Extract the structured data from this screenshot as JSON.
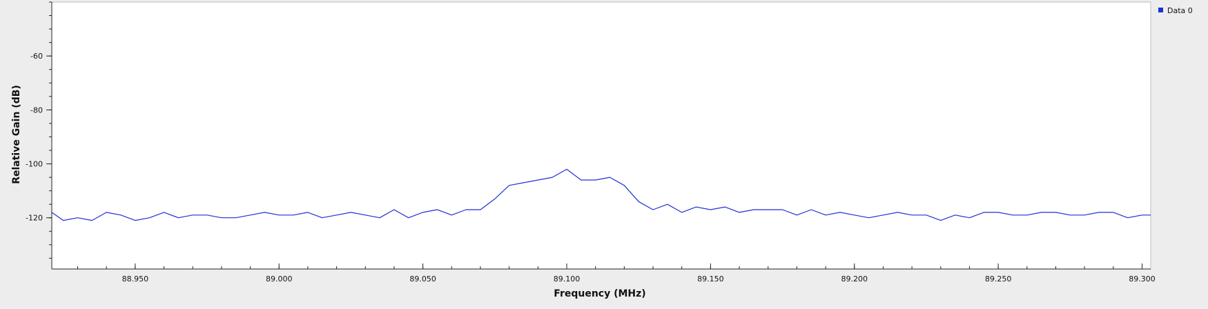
{
  "chart_data": {
    "type": "line",
    "xlabel": "Frequency (MHz)",
    "ylabel": "Relative Gain (dB)",
    "xlim": [
      88.921,
      89.303
    ],
    "ylim": [
      -139,
      -40
    ],
    "x_ticks": [
      88.95,
      89.0,
      89.05,
      89.1,
      89.15,
      89.2,
      89.25,
      89.3
    ],
    "x_tick_labels": [
      "88.950",
      "89.000",
      "89.050",
      "89.100",
      "89.150",
      "89.200",
      "89.250",
      "89.300"
    ],
    "y_ticks": [
      -60,
      -80,
      -100,
      -120
    ],
    "y_tick_labels": [
      "-60",
      "-80",
      "-100",
      "-120"
    ],
    "grid": false,
    "legend_position": "top-right",
    "series": [
      {
        "name": "Data 0",
        "color": "#1f2fd6",
        "x": [
          88.921,
          88.925,
          88.93,
          88.935,
          88.94,
          88.945,
          88.95,
          88.955,
          88.96,
          88.965,
          88.97,
          88.975,
          88.98,
          88.985,
          88.99,
          88.995,
          89.0,
          89.005,
          89.01,
          89.015,
          89.02,
          89.025,
          89.03,
          89.035,
          89.04,
          89.045,
          89.05,
          89.055,
          89.06,
          89.065,
          89.07,
          89.075,
          89.08,
          89.085,
          89.09,
          89.095,
          89.1,
          89.105,
          89.11,
          89.115,
          89.12,
          89.125,
          89.13,
          89.135,
          89.14,
          89.145,
          89.15,
          89.155,
          89.16,
          89.165,
          89.17,
          89.175,
          89.18,
          89.185,
          89.19,
          89.195,
          89.2,
          89.205,
          89.21,
          89.215,
          89.22,
          89.225,
          89.23,
          89.235,
          89.24,
          89.245,
          89.25,
          89.255,
          89.26,
          89.265,
          89.27,
          89.275,
          89.28,
          89.285,
          89.29,
          89.295,
          89.3,
          89.303
        ],
        "values": [
          -118,
          -121,
          -120,
          -121,
          -118,
          -119,
          -121,
          -120,
          -118,
          -120,
          -119,
          -119,
          -120,
          -120,
          -119,
          -118,
          -119,
          -119,
          -118,
          -120,
          -119,
          -118,
          -119,
          -120,
          -117,
          -120,
          -118,
          -117,
          -119,
          -117,
          -117,
          -113,
          -108,
          -107,
          -106,
          -105,
          -102,
          -106,
          -106,
          -105,
          -108,
          -114,
          -117,
          -115,
          -118,
          -116,
          -117,
          -116,
          -118,
          -117,
          -117,
          -117,
          -119,
          -117,
          -119,
          -118,
          -119,
          -120,
          -119,
          -118,
          -119,
          -119,
          -121,
          -119,
          -120,
          -118,
          -118,
          -119,
          -119,
          -118,
          -118,
          -119,
          -119,
          -118,
          -118,
          -120,
          -119,
          -119
        ]
      }
    ]
  }
}
